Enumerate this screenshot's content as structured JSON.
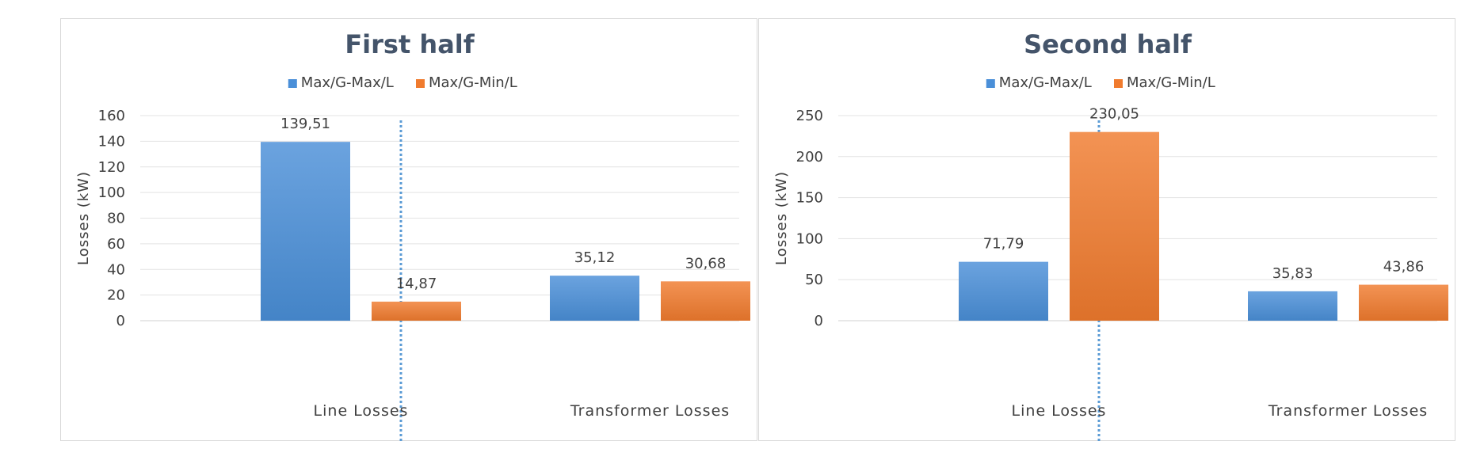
{
  "chart_data": [
    {
      "type": "bar",
      "title": "First half",
      "ylabel": "Losses (kW)",
      "xlabel": "",
      "categories": [
        "Line Losses",
        "Transformer Losses"
      ],
      "series": [
        {
          "name": "Max/G-Max/L",
          "values": [
            139.51,
            35.12
          ],
          "labels": [
            "139,51",
            "35,12"
          ],
          "color": "#4a8fd8"
        },
        {
          "name": "Max/G-Min/L",
          "values": [
            14.87,
            30.68
          ],
          "labels": [
            "14,87",
            "30,68"
          ],
          "color": "#f07b2e"
        }
      ],
      "ylim": [
        0,
        160
      ],
      "yticks": [
        0,
        20,
        40,
        60,
        80,
        100,
        120,
        140,
        160
      ],
      "grid": true,
      "legend": "top-center"
    },
    {
      "type": "bar",
      "title": "Second half",
      "ylabel": "Losses (kW)",
      "xlabel": "",
      "categories": [
        "Line Losses",
        "Transformer Losses"
      ],
      "series": [
        {
          "name": "Max/G-Max/L",
          "values": [
            71.79,
            35.83
          ],
          "labels": [
            "71,79",
            "35,83"
          ],
          "color": "#4a8fd8"
        },
        {
          "name": "Max/G-Min/L",
          "values": [
            230.05,
            43.86
          ],
          "labels": [
            "230,05",
            "43,86"
          ],
          "color": "#f07b2e"
        }
      ],
      "ylim": [
        0,
        250
      ],
      "yticks": [
        0,
        50,
        100,
        150,
        200,
        250
      ],
      "grid": true,
      "legend": "top-center"
    }
  ]
}
